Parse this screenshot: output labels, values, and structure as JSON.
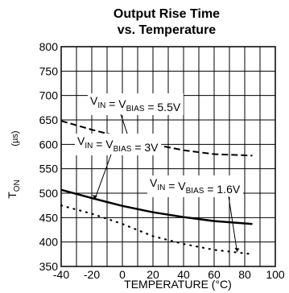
{
  "chart_data": {
    "type": "line",
    "title_line1": "Output Rise Time",
    "title_line2": "vs. Temperature",
    "xlabel": "TEMPERATURE (°C)",
    "ylabel_main": "T",
    "ylabel_sub": "ON",
    "ylabel_unit": "(µs)",
    "xlim": [
      -40,
      100
    ],
    "ylim": [
      350,
      800
    ],
    "x_ticks": [
      -40,
      -20,
      0,
      20,
      40,
      60,
      80,
      100
    ],
    "y_ticks": [
      350,
      400,
      450,
      500,
      550,
      600,
      650,
      700,
      750,
      800
    ],
    "grid": true,
    "series": [
      {
        "name": "V_IN = V_BIAS = 5.5V",
        "style": "dashed",
        "x": [
          -40,
          -20,
          0,
          20,
          40,
          60,
          85
        ],
        "y": [
          648,
          630,
          614,
          600,
          588,
          580,
          577
        ]
      },
      {
        "name": "V_IN = V_BIAS = 3V",
        "style": "solid",
        "x": [
          -40,
          -20,
          0,
          20,
          40,
          60,
          85
        ],
        "y": [
          507,
          490,
          474,
          461,
          451,
          443,
          437
        ]
      },
      {
        "name": "V_IN = V_BIAS = 1.6V",
        "style": "dotted",
        "x": [
          -40,
          -20,
          0,
          20,
          40,
          60,
          85
        ],
        "y": [
          475,
          458,
          437,
          412,
          396,
          384,
          375
        ]
      }
    ],
    "annotations": [
      {
        "series": 0,
        "parts": [
          {
            "t": "V",
            "s": "IN"
          },
          {
            "t": " = V",
            "s": "BIAS"
          },
          {
            "t": " = 5.5V"
          }
        ]
      },
      {
        "series": 1,
        "parts": [
          {
            "t": "V",
            "s": "IN"
          },
          {
            "t": " = V",
            "s": "BIAS"
          },
          {
            "t": " = 3V"
          }
        ]
      },
      {
        "series": 2,
        "parts": [
          {
            "t": "V",
            "s": "IN"
          },
          {
            "t": " = V",
            "s": "BIAS"
          },
          {
            "t": " = 1.6V"
          }
        ]
      }
    ]
  }
}
